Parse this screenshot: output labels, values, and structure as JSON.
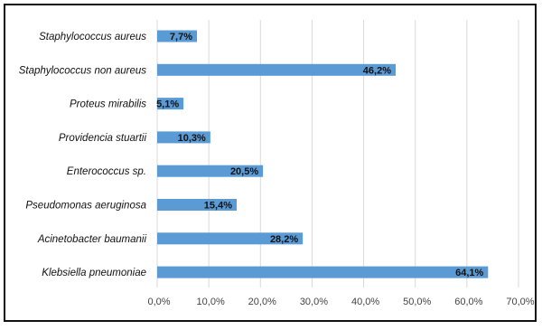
{
  "chart_data": {
    "type": "bar",
    "orientation": "horizontal",
    "categories": [
      "Staphylococcus aureus",
      "Staphylococcus non aureus",
      "Proteus mirabilis",
      "Providencia stuartii",
      "Enterococcus sp.",
      "Pseudomonas aeruginosa",
      "Acinetobacter baumanii",
      "Klebsiella pneumoniae"
    ],
    "values": [
      7.7,
      46.2,
      5.1,
      10.3,
      20.5,
      15.4,
      28.2,
      64.1
    ],
    "data_labels": [
      "7,7%",
      "46,2%",
      "5,1%",
      "10,3%",
      "20,5%",
      "15,4%",
      "28,2%",
      "64,1%"
    ],
    "x_ticks": [
      "0,0%",
      "10,0%",
      "20,0%",
      "30,0%",
      "40,0%",
      "50,0%",
      "60,0%",
      "70,0%"
    ],
    "xlim": [
      0,
      70
    ],
    "title": "",
    "xlabel": "",
    "ylabel": "",
    "grid": "vertical",
    "legend": "none",
    "bar_color": "#5b9bd5"
  }
}
